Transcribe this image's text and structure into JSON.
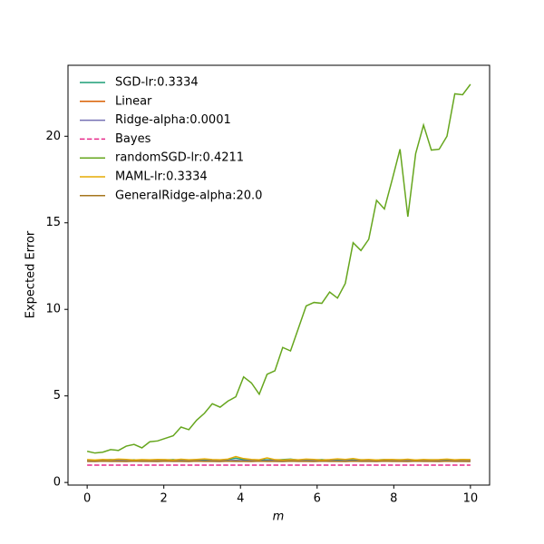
{
  "chart_data": {
    "type": "line",
    "x_label": "m",
    "y_label": "Expected Error",
    "x": [
      0,
      0.204,
      0.408,
      0.612,
      0.816,
      1.02,
      1.224,
      1.429,
      1.633,
      1.837,
      2.041,
      2.245,
      2.449,
      2.653,
      2.857,
      3.061,
      3.265,
      3.469,
      3.673,
      3.878,
      4.082,
      4.286,
      4.49,
      4.694,
      4.898,
      5.102,
      5.306,
      5.51,
      5.714,
      5.918,
      6.122,
      6.327,
      6.531,
      6.735,
      6.939,
      7.143,
      7.347,
      7.551,
      7.755,
      7.959,
      8.163,
      8.367,
      8.571,
      8.776,
      8.98,
      9.184,
      9.388,
      9.592,
      9.796,
      10
    ],
    "series": [
      {
        "name": "SGD-lr:0.3334",
        "color": "#1b9e77",
        "values": [
          1.3,
          1.28,
          1.3,
          1.32,
          1.29,
          1.3,
          1.31,
          1.28,
          1.3,
          1.29,
          1.3,
          1.32,
          1.28,
          1.3,
          1.31,
          1.3,
          1.29,
          1.3,
          1.33,
          1.4,
          1.32,
          1.3,
          1.29,
          1.31,
          1.3,
          1.32,
          1.35,
          1.3,
          1.31,
          1.3,
          1.32,
          1.29,
          1.3,
          1.33,
          1.3,
          1.31,
          1.29,
          1.3,
          1.32,
          1.3,
          1.31,
          1.3,
          1.29,
          1.3,
          1.31,
          1.3,
          1.29,
          1.3,
          1.31,
          1.3
        ]
      },
      {
        "name": "Linear",
        "color": "#d95f02",
        "values": [
          1.25,
          1.24,
          1.26,
          1.25,
          1.27,
          1.25,
          1.24,
          1.26,
          1.25,
          1.26,
          1.25,
          1.27,
          1.24,
          1.25,
          1.26,
          1.25,
          1.24,
          1.26,
          1.25,
          1.27,
          1.25,
          1.26,
          1.24,
          1.25,
          1.27,
          1.25,
          1.26,
          1.24,
          1.25,
          1.26,
          1.25,
          1.27,
          1.24,
          1.25,
          1.26,
          1.25,
          1.24,
          1.26,
          1.25,
          1.27,
          1.25,
          1.26,
          1.24,
          1.25,
          1.26,
          1.25,
          1.24,
          1.26,
          1.25,
          1.26
        ]
      },
      {
        "name": "Ridge-alpha:0.0001",
        "color": "#7570b3",
        "values": [
          1.26,
          1.25,
          1.26,
          1.25,
          1.27,
          1.26,
          1.25,
          1.26,
          1.25,
          1.26,
          1.26,
          1.27,
          1.25,
          1.26,
          1.26,
          1.25,
          1.25,
          1.26,
          1.26,
          1.27,
          1.26,
          1.26,
          1.25,
          1.26,
          1.27,
          1.26,
          1.26,
          1.25,
          1.26,
          1.26,
          1.25,
          1.27,
          1.25,
          1.26,
          1.26,
          1.25,
          1.25,
          1.26,
          1.26,
          1.27,
          1.26,
          1.26,
          1.25,
          1.26,
          1.26,
          1.25,
          1.25,
          1.26,
          1.26,
          1.26
        ]
      },
      {
        "name": "Bayes",
        "color": "#e7298a",
        "linestyle": "dashed",
        "values": [
          1,
          1,
          1,
          1,
          1,
          1,
          1,
          1,
          1,
          1,
          1,
          1,
          1,
          1,
          1,
          1,
          1,
          1,
          1,
          1,
          1,
          1,
          1,
          1,
          1,
          1,
          1,
          1,
          1,
          1,
          1,
          1,
          1,
          1,
          1,
          1,
          1,
          1,
          1,
          1,
          1,
          1,
          1,
          1,
          1,
          1,
          1,
          1,
          1,
          1
        ]
      },
      {
        "name": "randomSGD-lr:0.4211",
        "color": "#66a61e",
        "values": [
          1.8,
          1.7,
          1.75,
          1.9,
          1.85,
          2.1,
          2.2,
          2.0,
          2.35,
          2.4,
          2.55,
          2.7,
          3.2,
          3.05,
          3.6,
          4.0,
          4.55,
          4.35,
          4.7,
          4.95,
          6.1,
          5.75,
          5.1,
          6.25,
          6.45,
          7.8,
          7.6,
          8.9,
          10.2,
          10.4,
          10.35,
          11.0,
          10.65,
          11.5,
          13.85,
          13.4,
          14.05,
          16.3,
          15.8,
          17.5,
          19.25,
          15.35,
          19.0,
          20.65,
          19.2,
          19.25,
          20.0,
          22.45,
          22.4,
          23.0
        ]
      },
      {
        "name": "MAML-lr:0.3334",
        "color": "#e6ab02",
        "values": [
          1.32,
          1.3,
          1.33,
          1.31,
          1.35,
          1.33,
          1.3,
          1.32,
          1.31,
          1.33,
          1.32,
          1.3,
          1.34,
          1.31,
          1.33,
          1.36,
          1.32,
          1.31,
          1.35,
          1.5,
          1.38,
          1.33,
          1.31,
          1.42,
          1.32,
          1.3,
          1.33,
          1.31,
          1.35,
          1.33,
          1.3,
          1.32,
          1.36,
          1.33,
          1.38,
          1.31,
          1.33,
          1.3,
          1.32,
          1.33,
          1.31,
          1.34,
          1.3,
          1.33,
          1.31,
          1.32,
          1.35,
          1.31,
          1.33,
          1.32
        ]
      },
      {
        "name": "GeneralRidge-alpha:20.0",
        "color": "#a6761d",
        "values": [
          1.22,
          1.21,
          1.23,
          1.22,
          1.22,
          1.21,
          1.23,
          1.22,
          1.22,
          1.21,
          1.23,
          1.22,
          1.22,
          1.21,
          1.23,
          1.22,
          1.22,
          1.21,
          1.23,
          1.22,
          1.22,
          1.21,
          1.23,
          1.22,
          1.22,
          1.21,
          1.23,
          1.22,
          1.22,
          1.21,
          1.23,
          1.22,
          1.22,
          1.21,
          1.23,
          1.22,
          1.22,
          1.21,
          1.23,
          1.22,
          1.22,
          1.21,
          1.23,
          1.22,
          1.22,
          1.21,
          1.23,
          1.22,
          1.22,
          1.21
        ]
      }
    ],
    "xlim": [
      -0.5,
      10.5
    ],
    "ylim": [
      -0.15,
      24.1
    ],
    "xticks": [
      0,
      2,
      4,
      6,
      8,
      10
    ],
    "yticks": [
      0,
      5,
      10,
      15,
      20
    ],
    "legend": "upper left"
  }
}
